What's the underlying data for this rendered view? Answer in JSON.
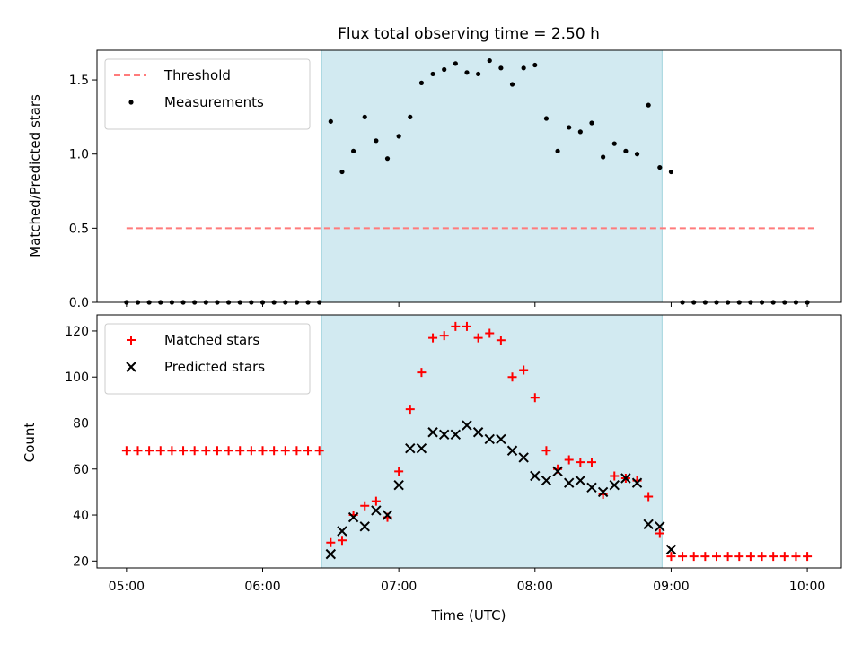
{
  "title": "Flux total observing time = 2.50 h",
  "chart_data": [
    {
      "type": "scatter",
      "ylabel": "Matched/Predicted stars",
      "ylim": [
        0,
        1.7
      ],
      "yticks": [
        "0.0",
        "0.5",
        "1.0",
        "1.5"
      ],
      "ytick_values": [
        0,
        0.5,
        1.0,
        1.5
      ],
      "xlim": [
        "04:47",
        "10:15"
      ],
      "shaded_span": [
        "06:26",
        "08:56"
      ],
      "shaded_color": "#add8e6",
      "threshold": {
        "name": "Threshold",
        "value": 0.5,
        "x_range": [
          "05:00",
          "10:03"
        ],
        "color": "#ff7b7b",
        "style": "dashed"
      },
      "legend": {
        "placement": "top-left",
        "entries": [
          "Threshold",
          "Measurements"
        ]
      },
      "series": [
        {
          "name": "Measurements",
          "marker": "dot",
          "color": "#000000",
          "x": [
            "05:00",
            "05:05",
            "05:10",
            "05:15",
            "05:20",
            "05:25",
            "05:30",
            "05:35",
            "05:40",
            "05:45",
            "05:50",
            "05:55",
            "06:00",
            "06:05",
            "06:10",
            "06:15",
            "06:20",
            "06:25",
            "06:30",
            "06:35",
            "06:40",
            "06:45",
            "06:50",
            "06:55",
            "07:00",
            "07:05",
            "07:10",
            "07:15",
            "07:20",
            "07:25",
            "07:30",
            "07:35",
            "07:40",
            "07:45",
            "07:50",
            "07:55",
            "08:00",
            "08:05",
            "08:10",
            "08:15",
            "08:20",
            "08:25",
            "08:30",
            "08:35",
            "08:40",
            "08:45",
            "08:50",
            "08:55",
            "09:00",
            "09:05",
            "09:10",
            "09:15",
            "09:20",
            "09:25",
            "09:30",
            "09:35",
            "09:40",
            "09:45",
            "09:50",
            "09:55",
            "10:00"
          ],
          "y": [
            0,
            0,
            0,
            0,
            0,
            0,
            0,
            0,
            0,
            0,
            0,
            0,
            0,
            0,
            0,
            0,
            0,
            0,
            1.22,
            0.88,
            1.02,
            1.25,
            1.09,
            0.97,
            1.12,
            1.25,
            1.48,
            1.54,
            1.57,
            1.61,
            1.55,
            1.54,
            1.63,
            1.58,
            1.47,
            1.58,
            1.6,
            1.24,
            1.02,
            1.18,
            1.15,
            1.21,
            0.98,
            1.07,
            1.02,
            1.0,
            1.33,
            0.91,
            0.88,
            0,
            0,
            0,
            0,
            0,
            0,
            0,
            0,
            0,
            0,
            0,
            0
          ]
        }
      ]
    },
    {
      "type": "scatter",
      "xlabel": "Time (UTC)",
      "ylabel": "Count",
      "ylim": [
        17,
        127
      ],
      "yticks": [
        "20",
        "40",
        "60",
        "80",
        "100",
        "120"
      ],
      "ytick_values": [
        20,
        40,
        60,
        80,
        100,
        120
      ],
      "xlim": [
        "04:47",
        "10:15"
      ],
      "xticks": [
        "05:00",
        "06:00",
        "07:00",
        "08:00",
        "09:00",
        "10:00"
      ],
      "shaded_span": [
        "06:26",
        "08:56"
      ],
      "shaded_color": "#add8e6",
      "legend": {
        "placement": "top-left",
        "entries": [
          "Matched stars",
          "Predicted stars"
        ]
      },
      "series": [
        {
          "name": "Matched stars",
          "marker": "plus",
          "color": "#ff0000",
          "x": [
            "05:00",
            "05:05",
            "05:10",
            "05:15",
            "05:20",
            "05:25",
            "05:30",
            "05:35",
            "05:40",
            "05:45",
            "05:50",
            "05:55",
            "06:00",
            "06:05",
            "06:10",
            "06:15",
            "06:20",
            "06:25",
            "06:30",
            "06:35",
            "06:40",
            "06:45",
            "06:50",
            "06:55",
            "07:00",
            "07:05",
            "07:10",
            "07:15",
            "07:20",
            "07:25",
            "07:30",
            "07:35",
            "07:40",
            "07:45",
            "07:50",
            "07:55",
            "08:00",
            "08:05",
            "08:10",
            "08:15",
            "08:20",
            "08:25",
            "08:30",
            "08:35",
            "08:40",
            "08:45",
            "08:50",
            "08:55",
            "09:00",
            "09:05",
            "09:10",
            "09:15",
            "09:20",
            "09:25",
            "09:30",
            "09:35",
            "09:40",
            "09:45",
            "09:50",
            "09:55",
            "10:00"
          ],
          "y": [
            68,
            68,
            68,
            68,
            68,
            68,
            68,
            68,
            68,
            68,
            68,
            68,
            68,
            68,
            68,
            68,
            68,
            68,
            28,
            29,
            40,
            44,
            46,
            39,
            59,
            86,
            102,
            117,
            118,
            122,
            122,
            117,
            119,
            116,
            100,
            103,
            91,
            68,
            60,
            64,
            63,
            63,
            49,
            57,
            56,
            55,
            48,
            32,
            22,
            22,
            22,
            22,
            22,
            22,
            22,
            22,
            22,
            22,
            22,
            22,
            22
          ]
        },
        {
          "name": "Predicted stars",
          "marker": "x",
          "color": "#000000",
          "x": [
            "06:30",
            "06:35",
            "06:40",
            "06:45",
            "06:50",
            "06:55",
            "07:00",
            "07:05",
            "07:10",
            "07:15",
            "07:20",
            "07:25",
            "07:30",
            "07:35",
            "07:40",
            "07:45",
            "07:50",
            "07:55",
            "08:00",
            "08:05",
            "08:10",
            "08:15",
            "08:20",
            "08:25",
            "08:30",
            "08:35",
            "08:40",
            "08:45",
            "08:50",
            "08:55",
            "09:00"
          ],
          "y": [
            23,
            33,
            39,
            35,
            42,
            40,
            53,
            69,
            69,
            76,
            75,
            75,
            79,
            76,
            73,
            73,
            68,
            65,
            57,
            55,
            59,
            54,
            55,
            52,
            50,
            53,
            56,
            54,
            36,
            35,
            25
          ]
        }
      ]
    }
  ]
}
